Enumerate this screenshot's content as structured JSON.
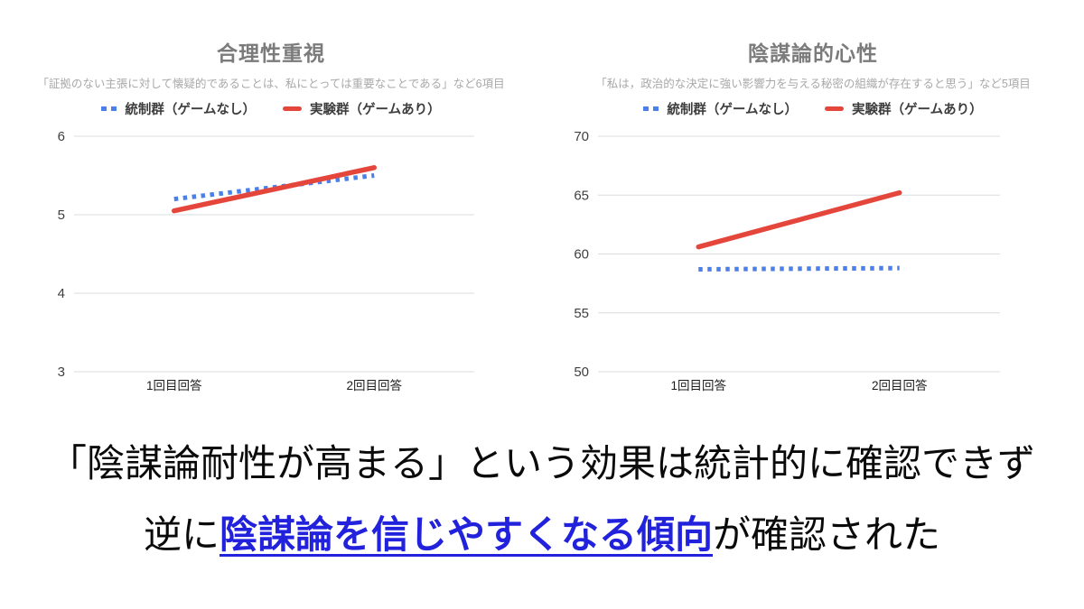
{
  "page": {
    "background": "#ffffff"
  },
  "chart_data": [
    {
      "type": "line",
      "title": "合理性重視",
      "subtitle": "「証拠のない主張に対して懐疑的であることは、私にとっては重要なことである」など6項目",
      "categories": [
        "1回目回答",
        "2回目回答"
      ],
      "series": [
        {
          "name": "統制群（ゲームなし）",
          "style": "dotted",
          "color": "#4a80e8",
          "values": [
            5.2,
            5.5
          ]
        },
        {
          "name": "実験群（ゲームあり）",
          "style": "solid",
          "color": "#e5463c",
          "values": [
            5.05,
            5.6
          ]
        }
      ],
      "ylim": [
        3,
        6
      ],
      "yticks": [
        6,
        5,
        4,
        3
      ],
      "grid": true,
      "gridline_color": "#dadce0",
      "legend_position": "top"
    },
    {
      "type": "line",
      "title": "陰謀論的心性",
      "subtitle": "「私は，政治的な決定に強い影響力を与える秘密の組織が存在すると思う」など5項目",
      "categories": [
        "1回目回答",
        "2回目回答"
      ],
      "series": [
        {
          "name": "統制群（ゲームなし）",
          "style": "dotted",
          "color": "#4a80e8",
          "values": [
            58.7,
            58.8
          ]
        },
        {
          "name": "実験群（ゲームあり）",
          "style": "solid",
          "color": "#e5463c",
          "values": [
            60.6,
            65.2
          ]
        }
      ],
      "ylim": [
        50,
        70
      ],
      "yticks": [
        70,
        65,
        60,
        55,
        50
      ],
      "grid": true,
      "gridline_color": "#dadce0",
      "legend_position": "top"
    }
  ],
  "caption": {
    "line1": "「陰謀論耐性が高まる」という効果は統計的に確認できず",
    "line2_prefix": "逆に",
    "line2_highlight": "陰謀論を信じやすくなる傾向",
    "line2_suffix": "が確認された",
    "highlight_color": "#2222dd"
  }
}
